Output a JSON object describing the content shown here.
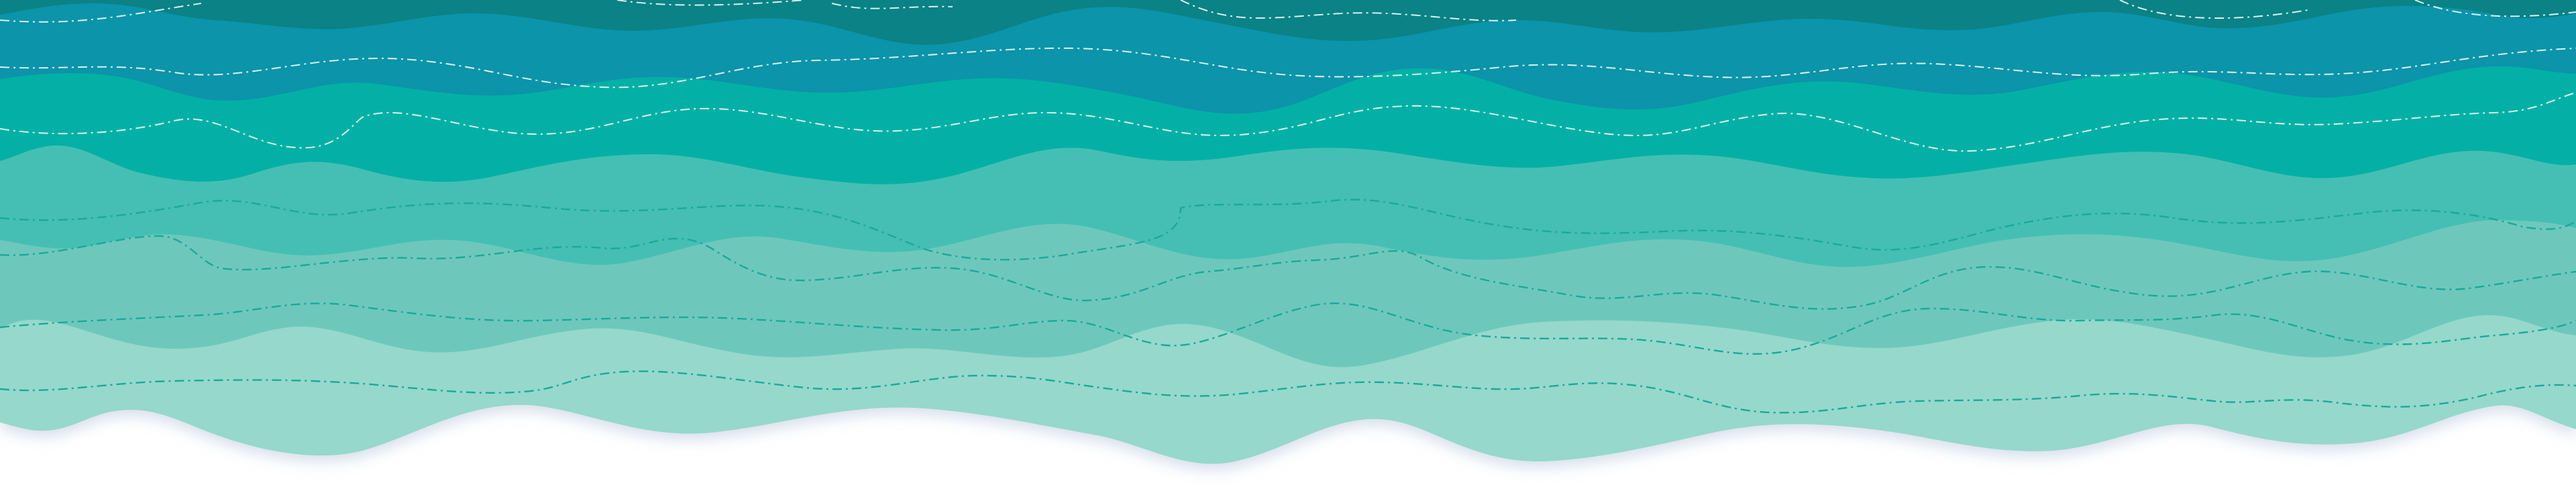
{
  "scene": {
    "description_icon": "wave-banner",
    "background_color": "#ffffff",
    "bands": [
      {
        "name": "band-1",
        "color": "#0a8286"
      },
      {
        "name": "band-2",
        "color": "#0b94aa"
      },
      {
        "name": "band-3",
        "color": "#04b0a5"
      },
      {
        "name": "band-4",
        "color": "#45bfb3"
      },
      {
        "name": "band-5",
        "color": "#6dc8bb"
      },
      {
        "name": "band-6",
        "color": "#96d8cc"
      }
    ],
    "dash_colors": {
      "light": "#d7f3f0",
      "dark": "#1aa99c"
    },
    "shadow_color": "#c9d3e6"
  }
}
